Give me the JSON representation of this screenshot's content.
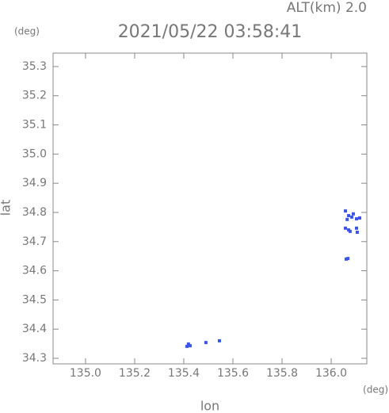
{
  "chart_data": {
    "type": "scatter",
    "title": "2021/05/22 03:58:41",
    "annotation": "ALT(km) 2.0",
    "y_unit": "(deg)",
    "x_unit": "(deg)",
    "x_label": "lon",
    "y_label": "lat",
    "x": [
      136.058,
      136.071,
      136.084,
      136.09,
      136.103,
      136.116,
      136.065,
      136.058,
      136.071,
      136.077,
      136.103,
      136.106,
      136.068,
      136.061,
      135.419,
      135.426,
      135.413,
      135.49,
      135.545
    ],
    "values": [
      34.805,
      34.789,
      34.784,
      34.795,
      34.778,
      34.781,
      34.776,
      34.746,
      34.74,
      34.735,
      34.746,
      34.732,
      34.642,
      34.64,
      34.349,
      34.343,
      34.341,
      34.354,
      34.36
    ],
    "color": "#3b55e6",
    "xlim": [
      134.868,
      136.145
    ],
    "ylim": [
      34.281,
      35.346
    ],
    "xticks": [
      {
        "value": 135,
        "label": "135.0"
      },
      135.2,
      135.4,
      135.6,
      135.8,
      {
        "value": 136,
        "label": "136.0"
      }
    ],
    "yticks": [
      34.3,
      34.4,
      34.5,
      34.6,
      34.7,
      34.8,
      34.9,
      {
        "value": 35,
        "label": "35.0"
      },
      35.1,
      35.2,
      35.3
    ]
  }
}
